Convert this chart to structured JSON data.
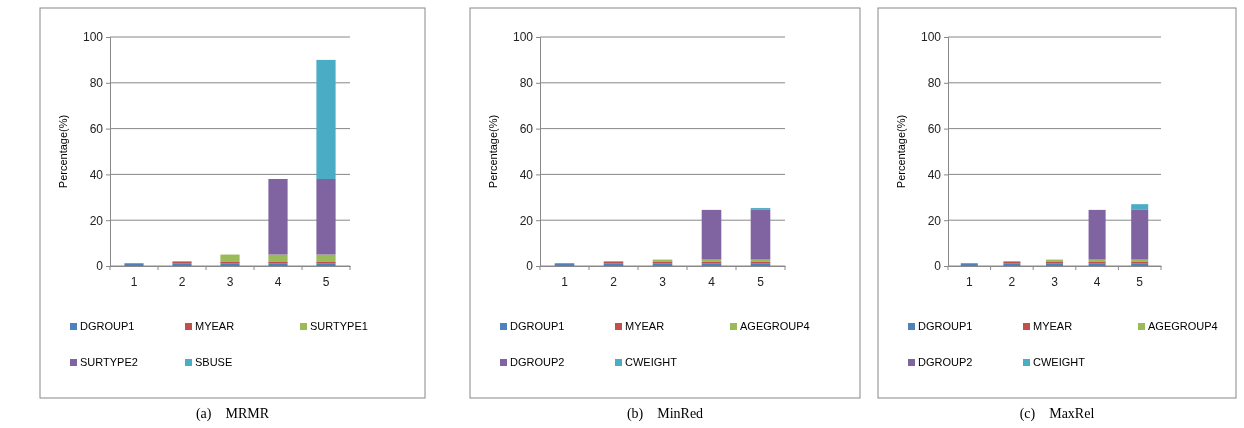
{
  "chart_data": [
    {
      "type": "bar",
      "title": "(a)    MRMR",
      "ylabel": "Percentage(%)",
      "categories": [
        "1",
        "2",
        "3",
        "4",
        "5"
      ],
      "stacked": true,
      "ylim": [
        0,
        100
      ],
      "yticks": [
        0,
        20,
        40,
        60,
        80,
        100
      ],
      "grid": "y",
      "legend": "bottom",
      "series": [
        {
          "name": "DGROUP1",
          "color": "#4f81bd",
          "values": [
            1.2,
            1.2,
            1.2,
            1.2,
            1.2
          ]
        },
        {
          "name": "MYEAR",
          "color": "#c0504d",
          "values": [
            null,
            0.8,
            0.8,
            0.8,
            0.8
          ]
        },
        {
          "name": "SURTYPE1",
          "color": "#9bbb59",
          "values": [
            null,
            null,
            3,
            3,
            3
          ]
        },
        {
          "name": "SURTYPE2",
          "color": "#8064a2",
          "values": [
            null,
            null,
            null,
            33,
            33
          ]
        },
        {
          "name": "SBUSE",
          "color": "#4bacc6",
          "values": [
            null,
            null,
            null,
            null,
            52
          ]
        }
      ]
    },
    {
      "type": "bar",
      "title": "(b)    MinRed",
      "ylabel": "Percentage(%)",
      "categories": [
        "1",
        "2",
        "3",
        "4",
        "5"
      ],
      "stacked": true,
      "ylim": [
        0,
        100
      ],
      "yticks": [
        0,
        20,
        40,
        60,
        80,
        100
      ],
      "grid": "y",
      "legend": "bottom",
      "series": [
        {
          "name": "DGROUP1",
          "color": "#4f81bd",
          "values": [
            1.2,
            1.2,
            1.2,
            1.2,
            1.2
          ]
        },
        {
          "name": "MYEAR",
          "color": "#c0504d",
          "values": [
            null,
            0.8,
            0.8,
            0.8,
            0.8
          ]
        },
        {
          "name": "AGEGROUP4",
          "color": "#9bbb59",
          "values": [
            null,
            null,
            0.8,
            0.8,
            0.8
          ]
        },
        {
          "name": "DGROUP2",
          "color": "#8064a2",
          "values": [
            null,
            null,
            null,
            21.7,
            21.7
          ]
        },
        {
          "name": "CWEIGHT",
          "color": "#4bacc6",
          "values": [
            null,
            null,
            null,
            null,
            0.8
          ]
        }
      ]
    },
    {
      "type": "bar",
      "title": "(c)    MaxRel",
      "ylabel": "Percentage(%)",
      "categories": [
        "1",
        "2",
        "3",
        "4",
        "5"
      ],
      "stacked": true,
      "ylim": [
        0,
        100
      ],
      "yticks": [
        0,
        20,
        40,
        60,
        80,
        100
      ],
      "grid": "y",
      "legend": "bottom",
      "series": [
        {
          "name": "DGROUP1",
          "color": "#4f81bd",
          "values": [
            1.2,
            1.2,
            1.2,
            1.2,
            1.2
          ]
        },
        {
          "name": "MYEAR",
          "color": "#c0504d",
          "values": [
            null,
            0.8,
            0.8,
            0.8,
            0.8
          ]
        },
        {
          "name": "AGEGROUP4",
          "color": "#9bbb59",
          "values": [
            null,
            null,
            0.8,
            0.8,
            0.8
          ]
        },
        {
          "name": "DGROUP2",
          "color": "#8064a2",
          "values": [
            null,
            null,
            null,
            21.7,
            21.7
          ]
        },
        {
          "name": "CWEIGHT",
          "color": "#4bacc6",
          "values": [
            null,
            null,
            null,
            null,
            2.5
          ]
        }
      ]
    }
  ]
}
